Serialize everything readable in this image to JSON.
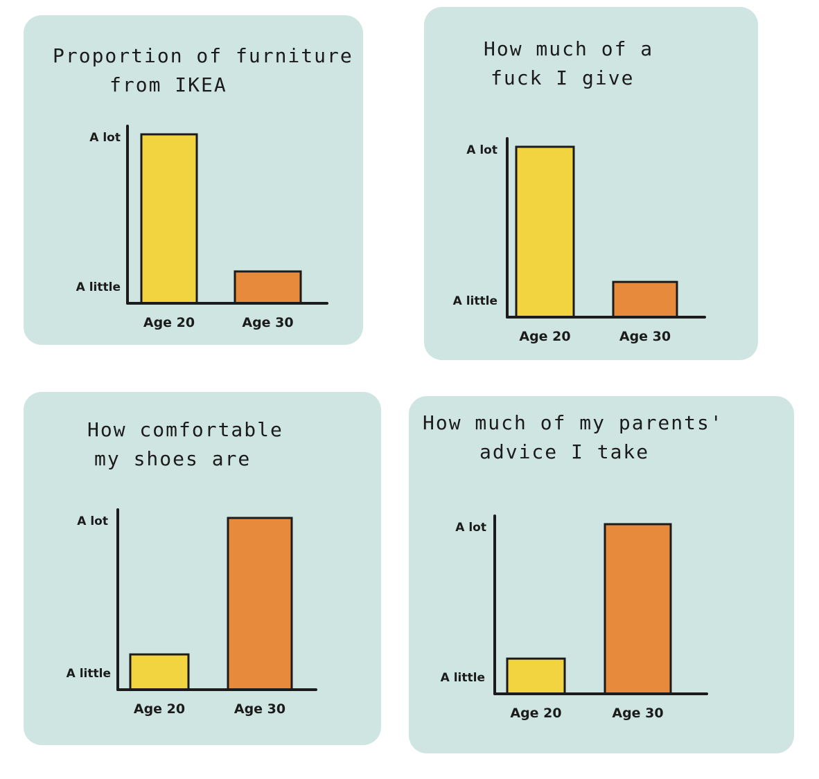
{
  "colors": {
    "panel": "#cfe5e1",
    "age20": "#f2d340",
    "age30": "#e88a3c",
    "ink": "#1b1b1b"
  },
  "chart_data": [
    {
      "type": "bar",
      "title_lines": [
        "Proportion of furniture",
        "from IKEA"
      ],
      "categories": [
        "Age 20",
        "Age 30"
      ],
      "values": [
        1.0,
        0.18
      ],
      "y_tick_labels": [
        "A lot",
        "A little"
      ],
      "ylim": [
        0,
        1
      ]
    },
    {
      "type": "bar",
      "title_lines": [
        "How much of a",
        "fuck I give"
      ],
      "categories": [
        "Age 20",
        "Age 30"
      ],
      "values": [
        1.0,
        0.2
      ],
      "y_tick_labels": [
        "A lot",
        "A little"
      ],
      "ylim": [
        0,
        1
      ]
    },
    {
      "type": "bar",
      "title_lines": [
        "How comfortable",
        "my shoes are"
      ],
      "categories": [
        "Age 20",
        "Age 30"
      ],
      "values": [
        0.2,
        1.0
      ],
      "y_tick_labels": [
        "A lot",
        "A little"
      ],
      "ylim": [
        0,
        1
      ]
    },
    {
      "type": "bar",
      "title_lines": [
        "How much of my parents'",
        "advice I take"
      ],
      "categories": [
        "Age 20",
        "Age 30"
      ],
      "values": [
        0.2,
        1.0
      ],
      "y_tick_labels": [
        "A lot",
        "A little"
      ],
      "ylim": [
        0,
        1
      ]
    }
  ]
}
